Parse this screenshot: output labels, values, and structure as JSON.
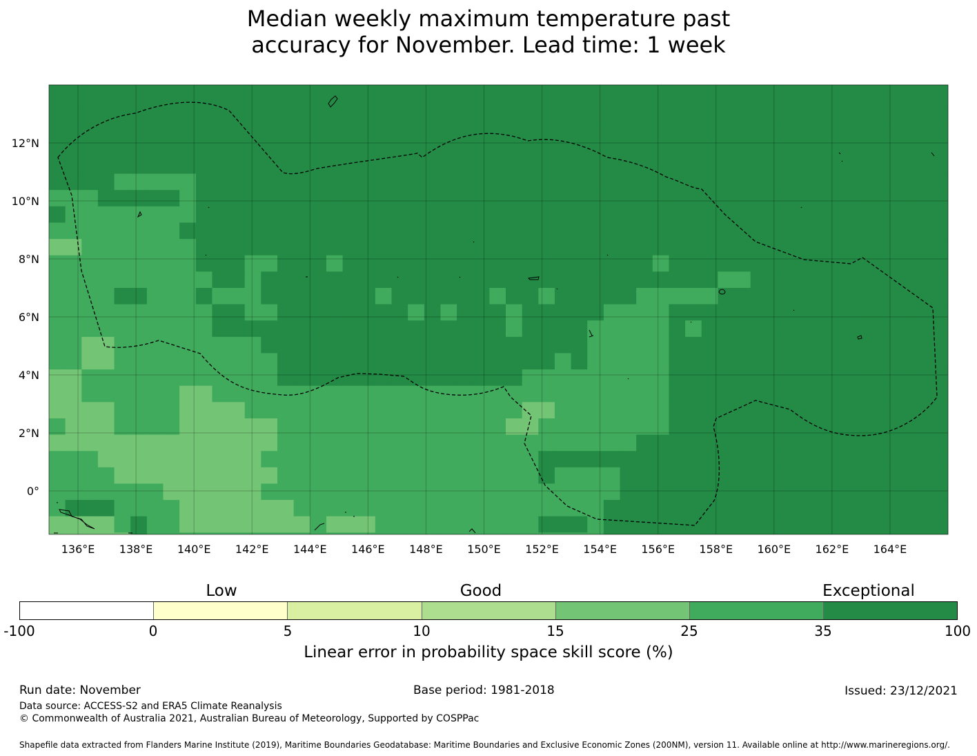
{
  "title": {
    "line1": "Median weekly maximum temperature past",
    "line2": "accuracy for November. Lead time: 1 week"
  },
  "map": {
    "lon_labels": [
      "136°E",
      "138°E",
      "140°E",
      "142°E",
      "144°E",
      "146°E",
      "148°E",
      "150°E",
      "152°E",
      "154°E",
      "156°E",
      "158°E",
      "160°E",
      "162°E",
      "164°E"
    ],
    "lat_labels": [
      "12°N",
      "10°N",
      "8°N",
      "6°N",
      "4°N",
      "2°N",
      "0°"
    ],
    "lon_range": [
      135.0,
      166.0
    ],
    "lat_range": [
      -1.5,
      14.0
    ],
    "grid_rows_top_lat": 13.75,
    "cell_deg": 0.5625,
    "grid_codes": [
      "6666666666666666666666666666666666666666666666666666666666",
      "6666666666666666666666666666666666666666666666666666666666",
      "6666666666666666666666666666666666666666666666666666666666",
      "6666666666666666666666666666666666666666666666666666666666",
      "6666666666666666666666666666666666666666666666666666666666",
      "6666666666666666666666666666666666666666666666666666666666",
      "6666555556666666666666666666666666666666666666666666666666",
      "5556666656666666666666666666666666666666666666666666666666",
      "6555555556666666666666666666666666666666666666666666666666",
      "5555555566666666666666666666666666666666666666666666666666",
      "4455555556666666666666666666666666666666666666666666666666",
      "5555555556665566656666666666666666666566666666666666666666",
      "5555555555665666666666666666666666666666655666666666666666",
      "5555665556555666666656666665665666665555566666666666666666",
      "5555555555665566666666565666566666555566666666666666666666",
      "5555555555666666666666666666566665555565666666666666666666",
      "5544555555555666666666666666666665555566666666666666666666",
      "5544555555555566666666666666666565555566666666666666666666",
      "4455555555555566666666666666655555555566666666666666666666",
      "4455555544555555555555555555555555555566666666666666666666",
      "4444555544445555555555555555544555555566666666666666666666",
      "5444555544444455555555555555445555555566666666666666666666",
      "4444444444444455555555555555555555556666666666666666666666",
      "5554444444444555555555555555556666666666666666666666666666",
      "5555444444444455555555555555556555566666666666666666666666",
      "5555555444444555555555555555555555566666666666666666666666",
      "5666555544444445555555555555555555666666666666666666666666",
      "4444565544444444544455555555556665666666666666666666666666",
      "4444465555555555555555555555555555666666666666666666666666"
    ],
    "palette_codes": {
      "4": "#74c476",
      "5": "#41ab5d",
      "6": "#238b45"
    }
  },
  "colorbar": {
    "groups": [
      "Low",
      "Good",
      "Exceptional"
    ],
    "ticks": [
      "-100",
      "0",
      "5",
      "10",
      "15",
      "25",
      "35",
      "100"
    ],
    "colors": [
      "#ffffff",
      "#ffffcc",
      "#d9f0a3",
      "#addd8e",
      "#74c476",
      "#41ab5d",
      "#238b45"
    ],
    "title": "Linear error in probability space skill score (%)"
  },
  "footer": {
    "run_date": "Run date: November",
    "base_period": "Base period: 1981-2018",
    "issued": "Issued: 23/12/2021",
    "data_source": "Data source: ACCESS-S2 and ERA5 Climate Reanalysis",
    "copyright": "© Commonwealth of Australia 2021, Australian Bureau of Meteorology, Supported by COSPPac",
    "shapefile": "Shapefile data extracted from Flanders Marine Institute (2019), Maritime Boundaries Geodatabase: Maritime Boundaries and Exclusive Economic Zones (200NM), version 11. Available online at http://www.marineregions.org/."
  }
}
